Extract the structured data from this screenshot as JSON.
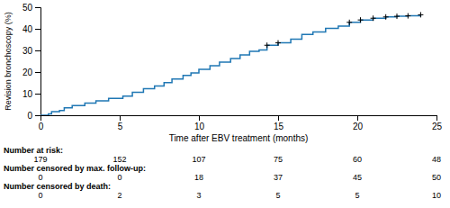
{
  "chart_data": {
    "type": "line",
    "xlabel": "Time after EBV treatment (months)",
    "ylabel": "Revision bronchoscopy (%)",
    "xlim": [
      0,
      25
    ],
    "ylim": [
      0,
      50
    ],
    "xticks": [
      0,
      5,
      10,
      15,
      20,
      25
    ],
    "yticks": [
      0,
      10,
      20,
      30,
      40,
      50
    ],
    "grid": false,
    "series": [
      {
        "type": "step",
        "x": [
          0.0,
          0.5,
          0.7,
          1.2,
          1.5,
          2.0,
          2.8,
          3.5,
          4.3,
          5.2,
          5.8,
          6.5,
          7.2,
          7.8,
          8.3,
          9.0,
          9.5,
          10.0,
          10.7,
          11.3,
          12.0,
          12.6,
          13.2,
          13.8,
          14.3,
          15.0,
          15.8,
          16.5,
          17.2,
          18.0,
          18.8,
          19.5,
          20.2,
          21.0,
          21.8,
          22.5,
          23.2,
          24.0
        ],
        "values": [
          0.0,
          0.6,
          1.7,
          2.2,
          3.4,
          4.5,
          5.6,
          6.7,
          7.8,
          8.9,
          10.6,
          12.3,
          13.5,
          15.1,
          16.8,
          18.4,
          19.6,
          21.2,
          22.9,
          24.6,
          26.3,
          27.9,
          29.6,
          30.2,
          32.4,
          33.5,
          35.2,
          37.4,
          38.5,
          40.2,
          41.3,
          43.0,
          44.1,
          44.9,
          45.5,
          45.8,
          46.0,
          46.5
        ]
      },
      {
        "type": "scatter",
        "marker": "plus",
        "color": "#000000",
        "x": [
          14.3,
          15.0,
          19.5,
          20.2,
          21.0,
          21.8,
          22.5,
          23.2,
          24.0
        ],
        "values": [
          32.4,
          33.5,
          43.0,
          44.1,
          44.9,
          45.5,
          45.8,
          46.0,
          46.5
        ]
      }
    ],
    "risk_table": {
      "labels": [
        "Number at risk:",
        "Number censored by max. follow-up:",
        "Number censored by death:"
      ],
      "times": [
        0,
        5,
        10,
        15,
        20,
        25
      ],
      "values": [
        [
          179,
          152,
          107,
          75,
          60,
          48
        ],
        [
          0,
          0,
          18,
          37,
          45,
          50
        ],
        [
          0,
          2,
          3,
          5,
          5,
          10
        ]
      ]
    }
  }
}
